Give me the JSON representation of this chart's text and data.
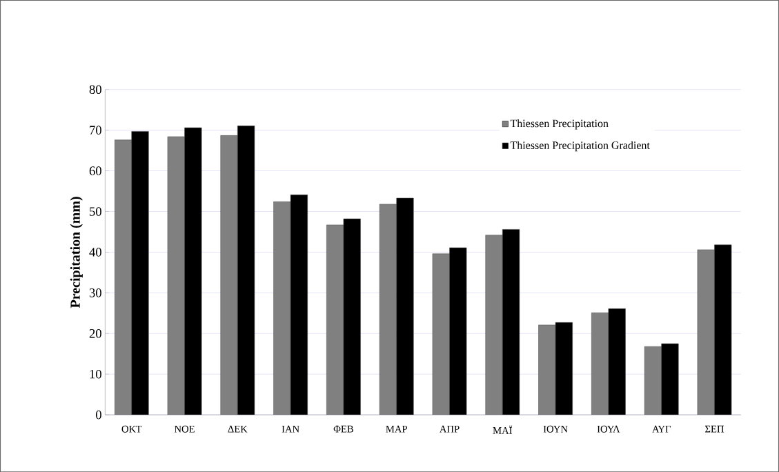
{
  "chart_data": {
    "type": "bar",
    "ylabel": "Precipitation (mm)",
    "categories": [
      "ΟΚΤ",
      "ΝΟΕ",
      "ΔΕΚ",
      "ΙΑΝ",
      "ΦΕΒ",
      "ΜΑΡ",
      "ΑΠΡ",
      "ΜΑΪ",
      "ΙΟΥΝ",
      "ΙΟΥΛ",
      "ΑΥΓ",
      "ΣΕΠ"
    ],
    "series": [
      {
        "name": "Thiessen Precipitation",
        "color": "#808080",
        "values": [
          67.6,
          68.4,
          68.7,
          52.4,
          46.7,
          51.8,
          39.6,
          44.2,
          22.1,
          25.1,
          16.8,
          40.6
        ]
      },
      {
        "name": "Thiessen Precipitation Gradient",
        "color": "#000000",
        "values": [
          69.7,
          70.6,
          71.1,
          54.1,
          48.2,
          53.3,
          41.1,
          45.6,
          22.7,
          26.1,
          17.5,
          41.8
        ]
      }
    ],
    "ylim": [
      0,
      80
    ],
    "yticks": [
      0,
      10,
      20,
      30,
      40,
      50,
      60,
      70,
      80
    ],
    "grid": "y",
    "legend": "top right"
  }
}
